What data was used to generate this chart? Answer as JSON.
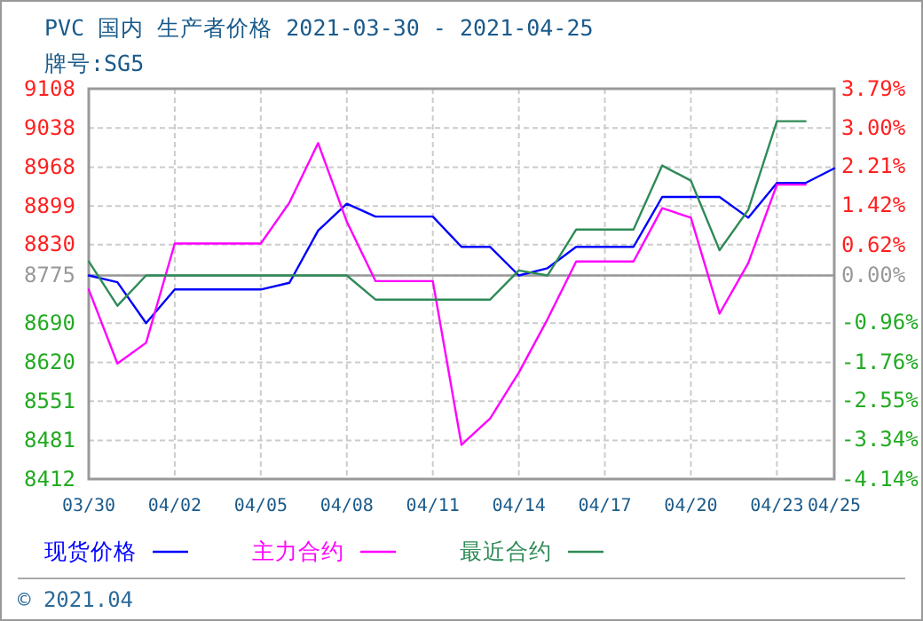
{
  "chart_data": {
    "type": "line",
    "title": "PVC 国内 生产者价格 2021-03-30 - 2021-04-25",
    "subtitle": "牌号:SG5",
    "x": [
      "--03-30",
      "--03-31",
      "--04-01",
      "--04-02",
      "--04-03",
      "--04-04",
      "--04-05",
      "--04-06",
      "--04-07",
      "--04-08",
      "--04-09",
      "--04-10",
      "--04-11",
      "--04-12",
      "--04-13",
      "--04-14",
      "--04-15",
      "--04-16",
      "--04-17",
      "--04-18",
      "--04-19",
      "--04-20",
      "--04-21",
      "--04-22",
      "--04-23",
      "--04-24",
      "--04-25"
    ],
    "series": [
      {
        "name": "现货价格",
        "color": "#0000ff",
        "values": [
          8775,
          8763,
          8690,
          8750,
          8750,
          8750,
          8750,
          8762,
          8855,
          8903,
          8880,
          8880,
          8880,
          8826,
          8826,
          8775,
          8788,
          8826,
          8826,
          8826,
          8915,
          8915,
          8915,
          8878,
          8940,
          8940,
          8966
        ]
      },
      {
        "name": "主力合约",
        "color": "#ff00ff",
        "values": [
          8750,
          8618,
          8655,
          8832,
          8832,
          8832,
          8832,
          8905,
          9011,
          8871,
          8765,
          8765,
          8765,
          8473,
          8520,
          8602,
          8697,
          8800,
          8800,
          8800,
          8895,
          8878,
          8707,
          8797,
          8937,
          8937,
          null
        ]
      },
      {
        "name": "最近合约",
        "color": "#2e8b57",
        "values": [
          8800,
          8721,
          8775,
          8775,
          8775,
          8775,
          8775,
          8775,
          8775,
          8775,
          8732,
          8732,
          8732,
          8732,
          8732,
          8784,
          8775,
          8857,
          8857,
          8857,
          8971,
          8944,
          8820,
          8892,
          9050,
          9050,
          null
        ]
      }
    ],
    "xlim": [
      "--03-30",
      "--04-25"
    ],
    "xticks": [
      {
        "value": "--03-30",
        "label": "03/30"
      },
      {
        "value": "--04-02",
        "label": "04/02"
      },
      {
        "value": "--04-05",
        "label": "04/05"
      },
      {
        "value": "--04-08",
        "label": "04/08"
      },
      {
        "value": "--04-11",
        "label": "04/11"
      },
      {
        "value": "--04-14",
        "label": "04/14"
      },
      {
        "value": "--04-17",
        "label": "04/17"
      },
      {
        "value": "--04-20",
        "label": "04/20"
      },
      {
        "value": "--04-23",
        "label": "04/23"
      },
      {
        "value": "--04-25",
        "label": "04/25"
      }
    ],
    "ylim": [
      8412,
      9108
    ],
    "yticks": [
      9108,
      9038,
      8968,
      8899,
      8830,
      8775,
      8690,
      8620,
      8551,
      8481,
      8412
    ],
    "y2lim": [
      -4.14,
      3.79
    ],
    "y2ticks": [
      {
        "value": 3.79,
        "label": "3.79%"
      },
      {
        "value": 3.0,
        "label": "3.00%"
      },
      {
        "value": 2.21,
        "label": "2.21%"
      },
      {
        "value": 1.42,
        "label": "1.42%"
      },
      {
        "value": 0.62,
        "label": "0.62%"
      },
      {
        "value": 0,
        "label": "0.00%"
      },
      {
        "value": -0.96,
        "label": "-0.96%"
      },
      {
        "value": -1.76,
        "label": "-1.76%"
      },
      {
        "value": -2.55,
        "label": "-2.55%"
      },
      {
        "value": -3.34,
        "label": "-3.34%"
      },
      {
        "value": -4.14,
        "label": "-4.14%"
      }
    ],
    "ref_lines": [
      {
        "axis": "y",
        "value": 8775,
        "color": "#999999"
      }
    ],
    "grid": true,
    "legend": "bottom",
    "marker": "none",
    "line_style": "solid",
    "annotations": [
      "© 2021.04"
    ]
  }
}
